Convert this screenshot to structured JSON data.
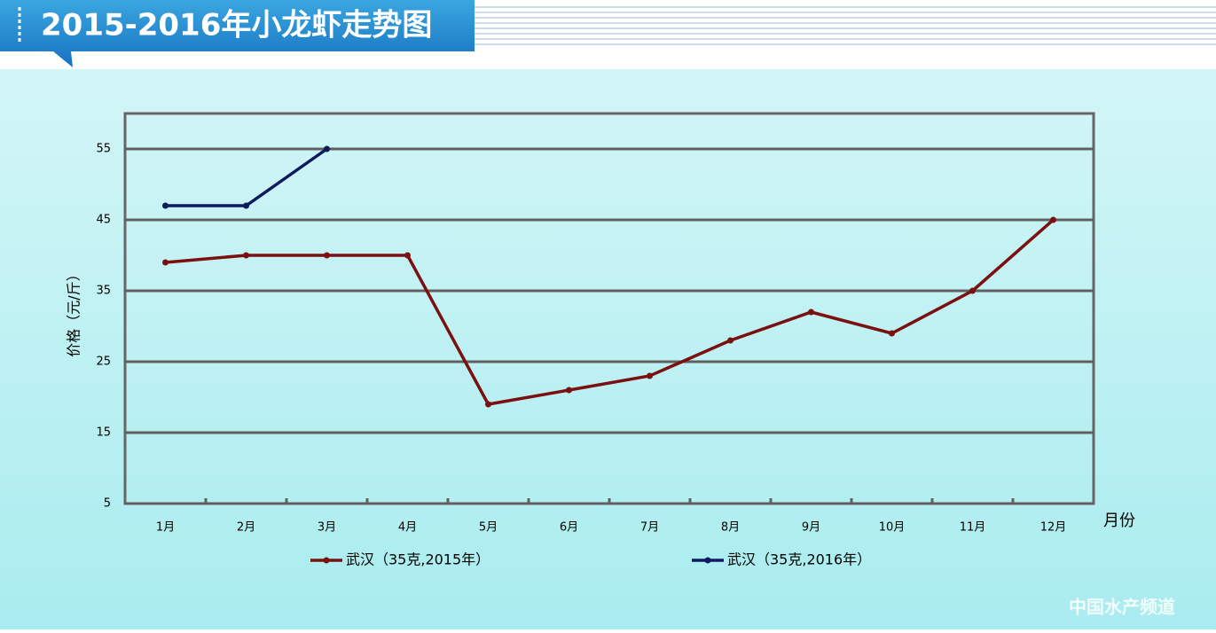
{
  "chart_data": {
    "type": "line",
    "title": "2015-2016年小龙虾走势图",
    "y_label": "价格（元/斤）",
    "x_label": "月份",
    "watermark": "中国水产频道",
    "categories": [
      "1月",
      "2月",
      "3月",
      "4月",
      "5月",
      "6月",
      "7月",
      "8月",
      "9月",
      "10月",
      "11月",
      "12月"
    ],
    "series": [
      {
        "name": "武汉（35克,2015年）",
        "color": "#7a1010",
        "values": [
          39,
          40,
          40,
          40,
          19,
          21,
          23,
          28,
          32,
          29,
          35,
          45
        ]
      },
      {
        "name": "武汉（35克,2016年）",
        "color": "#0e1a5e",
        "values": [
          47,
          47,
          55,
          null,
          null,
          null,
          null,
          null,
          null,
          null,
          null,
          null
        ]
      }
    ],
    "ylim": [
      5,
      60
    ],
    "yticks": [
      5,
      15,
      25,
      35,
      45,
      55
    ],
    "grid": true
  }
}
